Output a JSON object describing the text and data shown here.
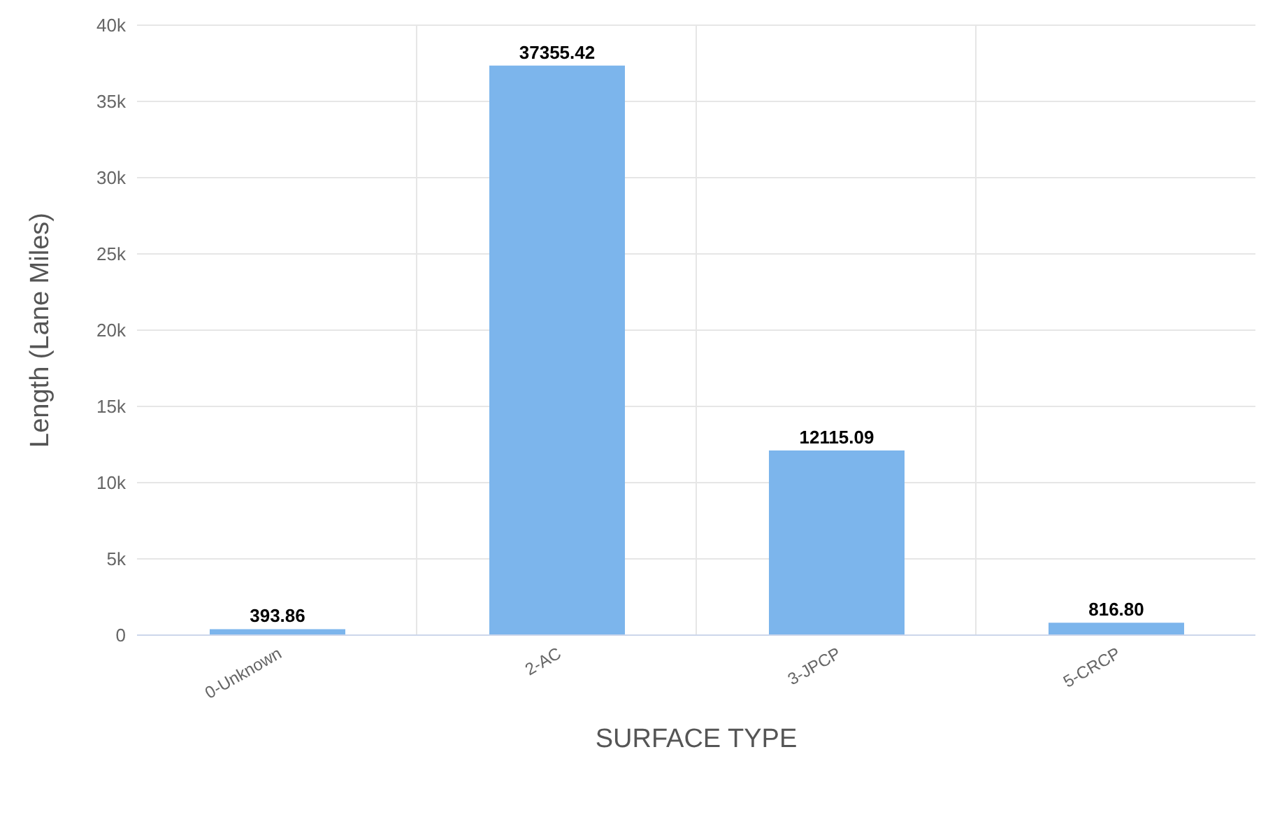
{
  "chart_data": {
    "type": "bar",
    "xlabel": "SURFACE TYPE",
    "ylabel": "Length (Lane Miles)",
    "categories": [
      "0-Unknown",
      "2-AC",
      "3-JPCP",
      "5-CRCP"
    ],
    "values": [
      393.86,
      37355.42,
      12115.09,
      816.8
    ],
    "value_labels": [
      "393.86",
      "37355.42",
      "12115.09",
      "816.80"
    ],
    "color": "#7cb5ec",
    "ylim": [
      0,
      40000
    ],
    "yticks": [
      {
        "value": 0,
        "label": "0"
      },
      {
        "value": 5000,
        "label": "5k"
      },
      {
        "value": 10000,
        "label": "10k"
      },
      {
        "value": 15000,
        "label": "15k"
      },
      {
        "value": 20000,
        "label": "20k"
      },
      {
        "value": 25000,
        "label": "25k"
      },
      {
        "value": 30000,
        "label": "30k"
      },
      {
        "value": 35000,
        "label": "35k"
      },
      {
        "value": 40000,
        "label": "40k"
      }
    ],
    "grid": true
  }
}
